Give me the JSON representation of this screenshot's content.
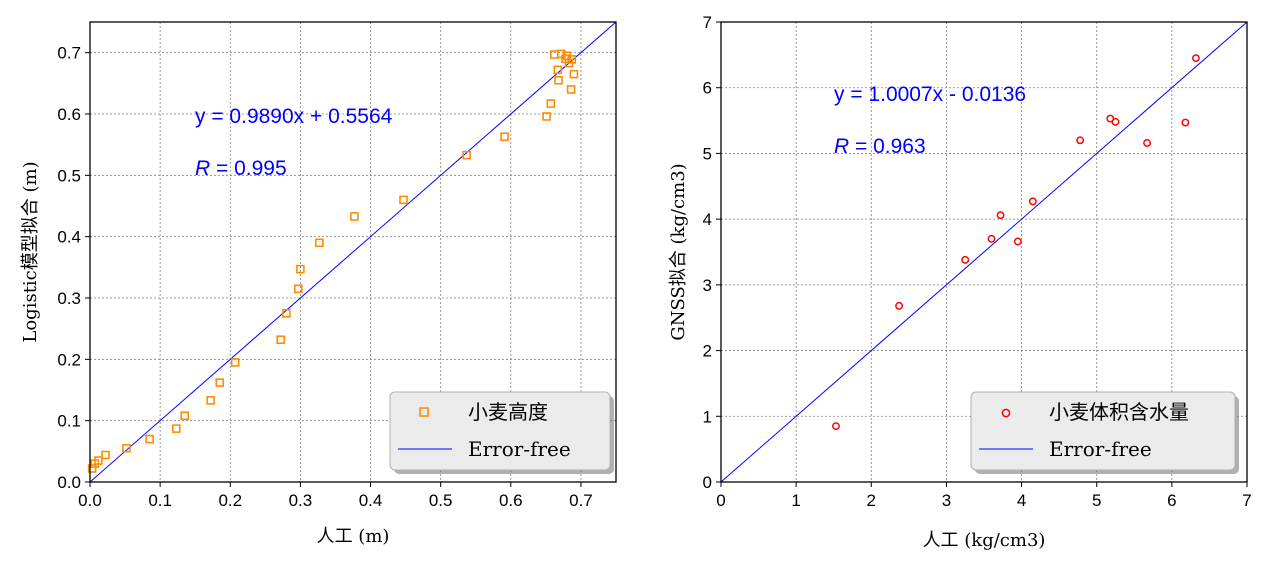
{
  "chart_data": [
    {
      "type": "scatter",
      "xlabel": "人工 (m)",
      "ylabel": "Logistic模型拟合 (m)",
      "xlim": [
        0,
        0.75
      ],
      "ylim": [
        0,
        0.75
      ],
      "xticks": [
        "0.0",
        "0.1",
        "0.2",
        "0.3",
        "0.4",
        "0.5",
        "0.6",
        "0.7"
      ],
      "yticks": [
        "0.0",
        "0.1",
        "0.2",
        "0.3",
        "0.4",
        "0.5",
        "0.6",
        "0.7"
      ],
      "grid": true,
      "legend_position": "lower-right",
      "equation": "y = 0.9890x + 0.5564",
      "r_label": "R",
      "r_value": " = 0.995",
      "marker": "square",
      "marker_color": "#ff8c00",
      "line_color": "#0000ff",
      "series": [
        {
          "name": "小麦高度",
          "points": [
            [
              0.003,
              0.022
            ],
            [
              0.007,
              0.03
            ],
            [
              0.012,
              0.035
            ],
            [
              0.022,
              0.044
            ],
            [
              0.052,
              0.055
            ],
            [
              0.085,
              0.07
            ],
            [
              0.123,
              0.087
            ],
            [
              0.135,
              0.108
            ],
            [
              0.172,
              0.133
            ],
            [
              0.185,
              0.162
            ],
            [
              0.207,
              0.195
            ],
            [
              0.272,
              0.232
            ],
            [
              0.28,
              0.275
            ],
            [
              0.297,
              0.315
            ],
            [
              0.3,
              0.347
            ],
            [
              0.327,
              0.39
            ],
            [
              0.377,
              0.433
            ],
            [
              0.447,
              0.46
            ],
            [
              0.537,
              0.533
            ],
            [
              0.591,
              0.563
            ],
            [
              0.651,
              0.596
            ],
            [
              0.657,
              0.617
            ],
            [
              0.662,
              0.697
            ],
            [
              0.667,
              0.672
            ],
            [
              0.668,
              0.655
            ],
            [
              0.672,
              0.698
            ],
            [
              0.678,
              0.69
            ],
            [
              0.68,
              0.695
            ],
            [
              0.683,
              0.683
            ],
            [
              0.686,
              0.64
            ],
            [
              0.687,
              0.689
            ],
            [
              0.69,
              0.665
            ]
          ]
        },
        {
          "name": "Error-free",
          "type": "line",
          "x": [
            0,
            0.75
          ],
          "y": [
            0,
            0.75
          ]
        }
      ]
    },
    {
      "type": "scatter",
      "xlabel": "人工 (kg/cm3)",
      "ylabel": "GNSS拟合 (kg/cm3)",
      "xlim": [
        0,
        7
      ],
      "ylim": [
        0,
        7
      ],
      "xticks": [
        "0",
        "1",
        "2",
        "3",
        "4",
        "5",
        "6",
        "7"
      ],
      "yticks": [
        "0",
        "1",
        "2",
        "3",
        "4",
        "5",
        "6",
        "7"
      ],
      "grid": true,
      "legend_position": "lower-right",
      "equation": "y = 1.0007x - 0.0136",
      "r_label": "R",
      "r_value": " = 0.963",
      "marker": "circle",
      "marker_color": "#ff0000",
      "line_color": "#0000ff",
      "series": [
        {
          "name": "小麦体积含水量",
          "points": [
            [
              1.53,
              0.85
            ],
            [
              2.37,
              2.68
            ],
            [
              3.25,
              3.38
            ],
            [
              3.6,
              3.7
            ],
            [
              3.72,
              4.06
            ],
            [
              3.95,
              3.66
            ],
            [
              4.15,
              4.27
            ],
            [
              4.78,
              5.2
            ],
            [
              5.18,
              5.53
            ],
            [
              5.25,
              5.48
            ],
            [
              5.67,
              5.16
            ],
            [
              6.18,
              5.47
            ],
            [
              6.32,
              6.45
            ]
          ]
        },
        {
          "name": "Error-free",
          "type": "line",
          "x": [
            0,
            7
          ],
          "y": [
            0,
            7
          ]
        }
      ]
    }
  ]
}
